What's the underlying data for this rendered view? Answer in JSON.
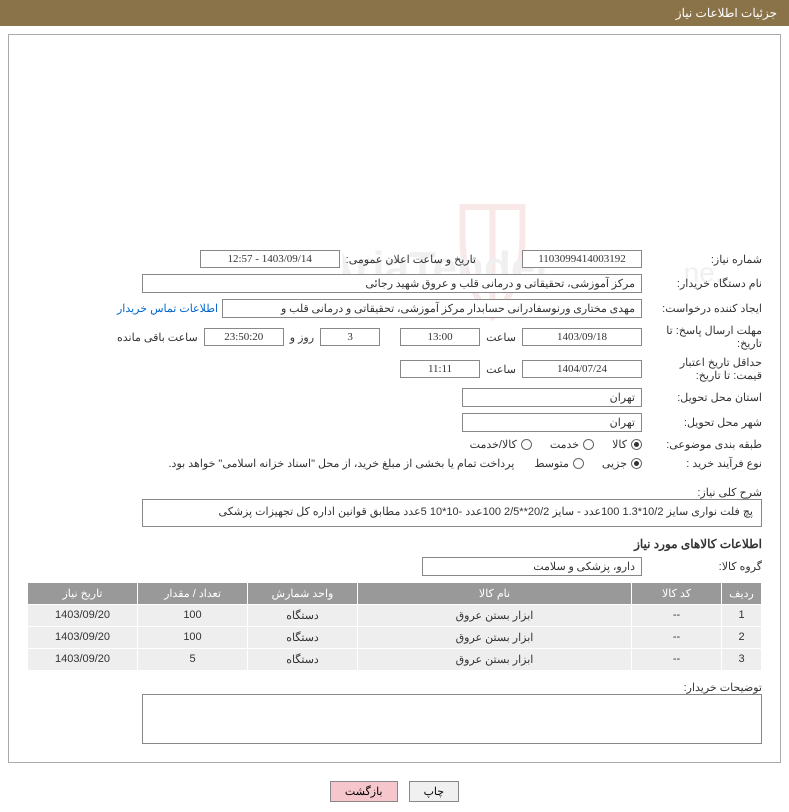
{
  "header": {
    "title": "جزئیات اطلاعات نیاز"
  },
  "fields": {
    "need_number_label": "شماره نیاز:",
    "need_number": "1103099414003192",
    "announce_datetime_label": "تاریخ و ساعت اعلان عمومی:",
    "announce_datetime": "1403/09/14 - 12:57",
    "buyer_org_label": "نام دستگاه خریدار:",
    "buyer_org": "مرکز آموزشی، تحقیقاتی و درمانی قلب و عروق شهید رجائی",
    "requester_label": "ایجاد کننده درخواست:",
    "requester": "مهدی مختاری ورنوسفادرانی حسابدار مرکز آموزشی، تحقیقاتی و درمانی قلب و",
    "contact_link": "اطلاعات تماس خریدار",
    "deadline_label": "مهلت ارسال پاسخ: تا تاریخ:",
    "deadline_date": "1403/09/18",
    "time_label": "ساعت",
    "deadline_time": "13:00",
    "remain_days": "3",
    "remain_days_label": "روز و",
    "remain_time": "23:50:20",
    "remain_label": "ساعت باقی مانده",
    "validity_label": "حداقل تاریخ اعتبار قیمت: تا تاریخ:",
    "validity_date": "1404/07/24",
    "validity_time": "11:11",
    "province_label": "استان محل تحویل:",
    "province": "تهران",
    "city_label": "شهر محل تحویل:",
    "city": "تهران",
    "category_label": "طبقه بندی موضوعی:",
    "cat_goods": "کالا",
    "cat_service": "خدمت",
    "cat_both": "کالا/خدمت",
    "process_label": "نوع فرآیند خرید :",
    "proc_minor": "جزیی",
    "proc_medium": "متوسط",
    "proc_note": "پرداخت تمام یا بخشی از مبلغ خرید، از محل \"اسناد خزانه اسلامی\" خواهد بود.",
    "desc_label": "شرح کلی نیاز:",
    "desc": "پچ فلت نواری سایز 10/2*1.3 100عدد - سایز 20/2**2/5 100عدد -10*10 5عدد مطابق قوانین اداره کل تجهیزات پزشکی",
    "goods_section": "اطلاعات کالاهای مورد نیاز",
    "group_label": "گروه کالا:",
    "group": "دارو، پزشکی و سلامت",
    "explain_label": "توضیحات خریدار:"
  },
  "table": {
    "headers": {
      "row": "ردیف",
      "code": "کد کالا",
      "name": "نام کالا",
      "unit": "واحد شمارش",
      "qty": "تعداد / مقدار",
      "date": "تاریخ نیاز"
    },
    "rows": [
      {
        "row": "1",
        "code": "--",
        "name": "ابزار بستن عروق",
        "unit": "دستگاه",
        "qty": "100",
        "date": "1403/09/20"
      },
      {
        "row": "2",
        "code": "--",
        "name": "ابزار بستن عروق",
        "unit": "دستگاه",
        "qty": "100",
        "date": "1403/09/20"
      },
      {
        "row": "3",
        "code": "--",
        "name": "ابزار بستن عروق",
        "unit": "دستگاه",
        "qty": "5",
        "date": "1403/09/20"
      }
    ]
  },
  "buttons": {
    "print": "چاپ",
    "back": "بازگشت"
  },
  "watermark": {
    "shield_stroke": "#c94a4a",
    "text_fill": "#888"
  }
}
